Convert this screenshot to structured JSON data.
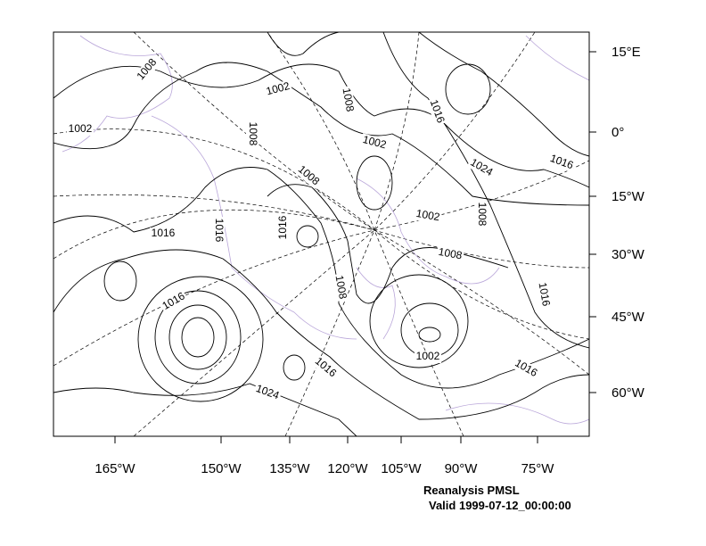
{
  "footer": {
    "title": "Reanalysis PMSL",
    "valid": "Valid 1999-07-12_00:00:00"
  },
  "lon_labels": [
    "165°W",
    "150°W",
    "135°W",
    "120°W",
    "105°W",
    "90°W",
    "75°W"
  ],
  "lat_labels": [
    "15°E",
    "0°",
    "15°W",
    "30°W",
    "45°W",
    "60°W"
  ],
  "contour_labels": [
    "1008",
    "1002",
    "1002",
    "1008",
    "1008",
    "1016",
    "1002",
    "1016",
    "1024",
    "1008",
    "1002",
    "1008",
    "1016",
    "1016",
    "1016",
    "1008",
    "1008",
    "1016",
    "1016",
    "1002",
    "1016",
    "1016",
    "1024"
  ]
}
